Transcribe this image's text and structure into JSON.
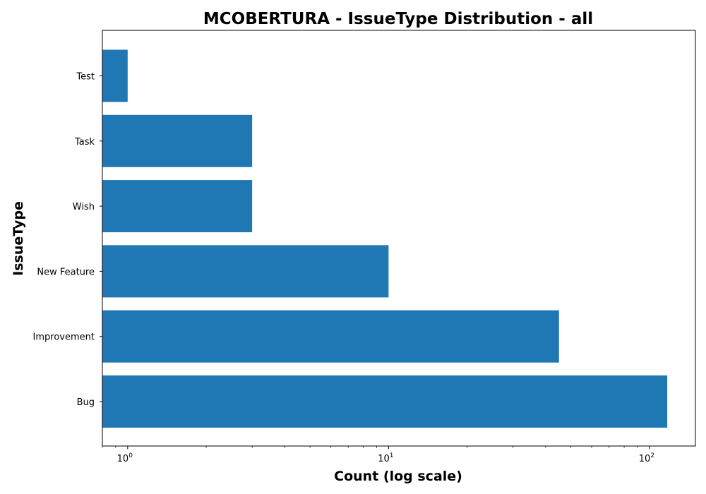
{
  "chart_data": {
    "type": "bar",
    "orientation": "horizontal",
    "title": "MCOBERTURA - IssueType Distribution - all",
    "xlabel": "Count (log scale)",
    "ylabel": "IssueType",
    "x_scale": "log",
    "xlim": [
      0.8,
      150
    ],
    "x_ticks": [
      {
        "value": 1,
        "base": "10",
        "exp": "0"
      },
      {
        "value": 10,
        "base": "10",
        "exp": "1"
      },
      {
        "value": 100,
        "base": "10",
        "exp": "2"
      }
    ],
    "categories": [
      "Bug",
      "Improvement",
      "New Feature",
      "Wish",
      "Task",
      "Test"
    ],
    "values": [
      117,
      45,
      10,
      3,
      3,
      1
    ],
    "bar_color": "#1f77b4",
    "grid": false,
    "legend": "none"
  }
}
